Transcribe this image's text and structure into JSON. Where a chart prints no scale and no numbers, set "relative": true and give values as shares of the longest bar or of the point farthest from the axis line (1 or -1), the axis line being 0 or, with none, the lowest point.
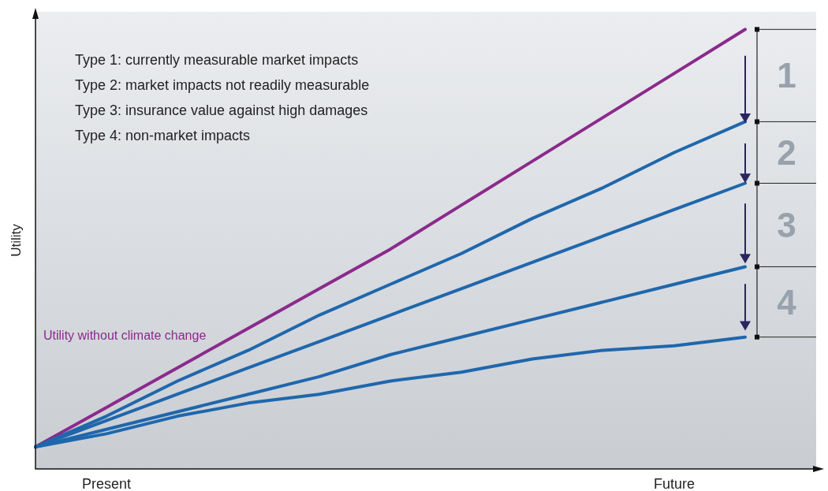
{
  "chart_data": {
    "type": "line",
    "relative": true,
    "ylabel": "Utility",
    "tick_labels": "x",
    "legend": false,
    "grid": false,
    "marker": "none",
    "line_style": "solid",
    "categories": [
      null,
      "Present",
      null,
      null,
      null,
      null,
      null,
      null,
      null,
      "Future",
      null,
      null
    ],
    "series": [
      {
        "name": "Utility without climate change",
        "color": "#8b2a8c",
        "values": [
          0.05,
          0.14,
          0.23,
          0.32,
          0.41,
          0.5,
          0.6,
          0.7,
          0.8,
          0.9,
          1.0,
          null
        ]
      },
      {
        "color": "#1f67ad",
        "values": [
          0.05,
          0.12,
          0.2,
          0.27,
          0.35,
          0.42,
          0.49,
          0.57,
          0.64,
          0.72,
          0.79,
          null
        ]
      },
      {
        "color": "#1f67ad",
        "values": [
          0.05,
          0.11,
          0.17,
          0.23,
          0.29,
          0.35,
          0.41,
          0.47,
          0.53,
          0.59,
          0.65,
          null
        ]
      },
      {
        "color": "#1f67ad",
        "values": [
          0.05,
          0.09,
          0.13,
          0.17,
          0.21,
          0.26,
          0.3,
          0.34,
          0.38,
          0.42,
          0.46,
          null
        ]
      },
      {
        "color": "#1f67ad",
        "values": [
          0.05,
          0.08,
          0.12,
          0.15,
          0.17,
          0.2,
          0.22,
          0.25,
          0.27,
          0.28,
          0.3,
          null
        ]
      }
    ],
    "annotations": [
      "Type 1: currently measurable market impacts",
      "Type 2: market impacts not readily measurable",
      "Type 3: insurance value against high damages",
      "Type 4: non-market impacts",
      "1",
      "2",
      "3",
      "4"
    ]
  }
}
